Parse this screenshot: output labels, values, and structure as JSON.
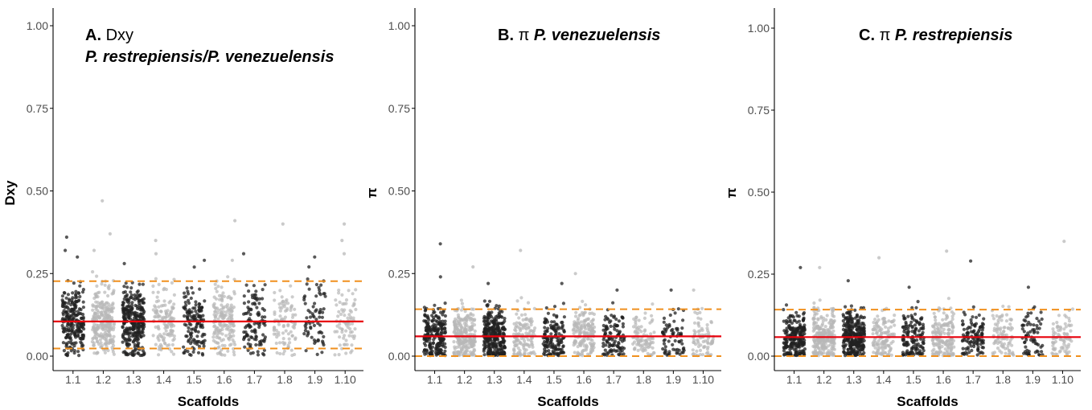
{
  "colors": {
    "dark_points": "#222222",
    "light_points": "#b8b8b8",
    "mean_line": "#e8000b",
    "quantile_lines": "#f0901e",
    "axis": "#000000"
  },
  "chart_data": [
    {
      "type": "scatter",
      "panel_letter": "A.",
      "title_stat": "Dxy",
      "title_species": "P. restrepiensis/P. venezuelensis",
      "xlabel": "Scaffolds",
      "ylabel": "Dxy",
      "categories": [
        "1.1",
        "1.2",
        "1.3",
        "1.4",
        "1.5",
        "1.6",
        "1.7",
        "1.8",
        "1.9",
        "1.10"
      ],
      "ylim": [
        0,
        1
      ],
      "yticks": [
        "0.00",
        "0.25",
        "0.50",
        "0.75",
        "1.00"
      ],
      "grid": false,
      "mean": 0.105,
      "lower_quantile": 0.023,
      "upper_quantile": 0.227,
      "point_counts": [
        230,
        260,
        300,
        130,
        140,
        170,
        110,
        90,
        70,
        80
      ],
      "point_center": 0.105,
      "point_spread": 0.055,
      "outliers": [
        {
          "x": "1.1",
          "y": 0.36
        },
        {
          "x": "1.1",
          "y": 0.32
        },
        {
          "x": "1.1",
          "y": 0.3
        },
        {
          "x": "1.2",
          "y": 0.47
        },
        {
          "x": "1.2",
          "y": 0.37
        },
        {
          "x": "1.2",
          "y": 0.32
        },
        {
          "x": "1.3",
          "y": 0.28
        },
        {
          "x": "1.4",
          "y": 0.35
        },
        {
          "x": "1.4",
          "y": 0.31
        },
        {
          "x": "1.5",
          "y": 0.29
        },
        {
          "x": "1.6",
          "y": 0.41
        },
        {
          "x": "1.6",
          "y": 0.29
        },
        {
          "x": "1.7",
          "y": 0.31
        },
        {
          "x": "1.8",
          "y": 0.4
        },
        {
          "x": "1.9",
          "y": 0.3
        },
        {
          "x": "1.9",
          "y": 0.27
        },
        {
          "x": "1.10",
          "y": 0.4
        },
        {
          "x": "1.10",
          "y": 0.35
        },
        {
          "x": "1.10",
          "y": 0.31
        }
      ]
    },
    {
      "type": "scatter",
      "panel_letter": "B.",
      "title_stat": "π",
      "title_species": "P. venezuelensis",
      "xlabel": "Scaffolds",
      "ylabel": "π",
      "categories": [
        "1.1",
        "1.2",
        "1.3",
        "1.4",
        "1.5",
        "1.6",
        "1.7",
        "1.8",
        "1.9",
        "1.10"
      ],
      "ylim": [
        0,
        1
      ],
      "yticks": [
        "0.00",
        "0.25",
        "0.50",
        "0.75",
        "1.00"
      ],
      "grid": false,
      "mean": 0.06,
      "lower_quantile": 0.0,
      "upper_quantile": 0.142,
      "point_counts": [
        230,
        260,
        300,
        130,
        140,
        170,
        110,
        90,
        70,
        80
      ],
      "point_center": 0.06,
      "point_spread": 0.04,
      "outliers": [
        {
          "x": "1.1",
          "y": 0.34
        },
        {
          "x": "1.1",
          "y": 0.24
        },
        {
          "x": "1.2",
          "y": 0.27
        },
        {
          "x": "1.3",
          "y": 0.22
        },
        {
          "x": "1.4",
          "y": 0.32
        },
        {
          "x": "1.5",
          "y": 0.22
        },
        {
          "x": "1.6",
          "y": 0.25
        },
        {
          "x": "1.7",
          "y": 0.2
        },
        {
          "x": "1.9",
          "y": 0.2
        },
        {
          "x": "1.10",
          "y": 0.2
        }
      ]
    },
    {
      "type": "scatter",
      "panel_letter": "C.",
      "title_stat": "π",
      "title_species": "P. restrepiensis",
      "xlabel": "Scaffolds",
      "ylabel": "π",
      "categories": [
        "1.1",
        "1.2",
        "1.3",
        "1.4",
        "1.5",
        "1.6",
        "1.7",
        "1.8",
        "1.9",
        "1.10"
      ],
      "ylim": [
        0,
        1
      ],
      "yticks": [
        "0.00",
        "0.25",
        "0.50",
        "0.75",
        "1.00"
      ],
      "grid": false,
      "mean": 0.058,
      "lower_quantile": 0.0,
      "upper_quantile": 0.142,
      "point_counts": [
        230,
        260,
        300,
        130,
        140,
        170,
        110,
        90,
        70,
        80
      ],
      "point_center": 0.058,
      "point_spread": 0.04,
      "outliers": [
        {
          "x": "1.1",
          "y": 0.27
        },
        {
          "x": "1.2",
          "y": 0.27
        },
        {
          "x": "1.3",
          "y": 0.23
        },
        {
          "x": "1.4",
          "y": 0.3
        },
        {
          "x": "1.5",
          "y": 0.21
        },
        {
          "x": "1.6",
          "y": 0.32
        },
        {
          "x": "1.7",
          "y": 0.29
        },
        {
          "x": "1.9",
          "y": 0.21
        },
        {
          "x": "1.10",
          "y": 0.35
        }
      ]
    }
  ]
}
